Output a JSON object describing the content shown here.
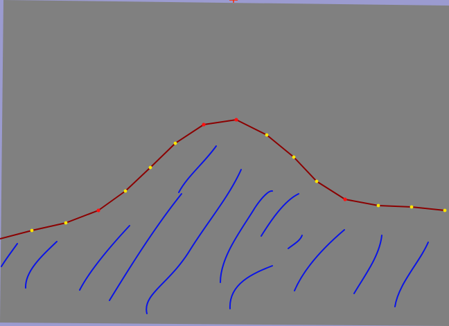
{
  "canvas": {
    "frame_color": "#9b9bd0",
    "background_color": "#808080",
    "profile_curve_color": "#8b0000",
    "control_point_color": "#ff1010",
    "sample_point_color": "#ffe600",
    "stroke_color": "#0a14e6",
    "cursor_color": "#ff2a00",
    "cursor_icon": "crosshair-icon"
  }
}
